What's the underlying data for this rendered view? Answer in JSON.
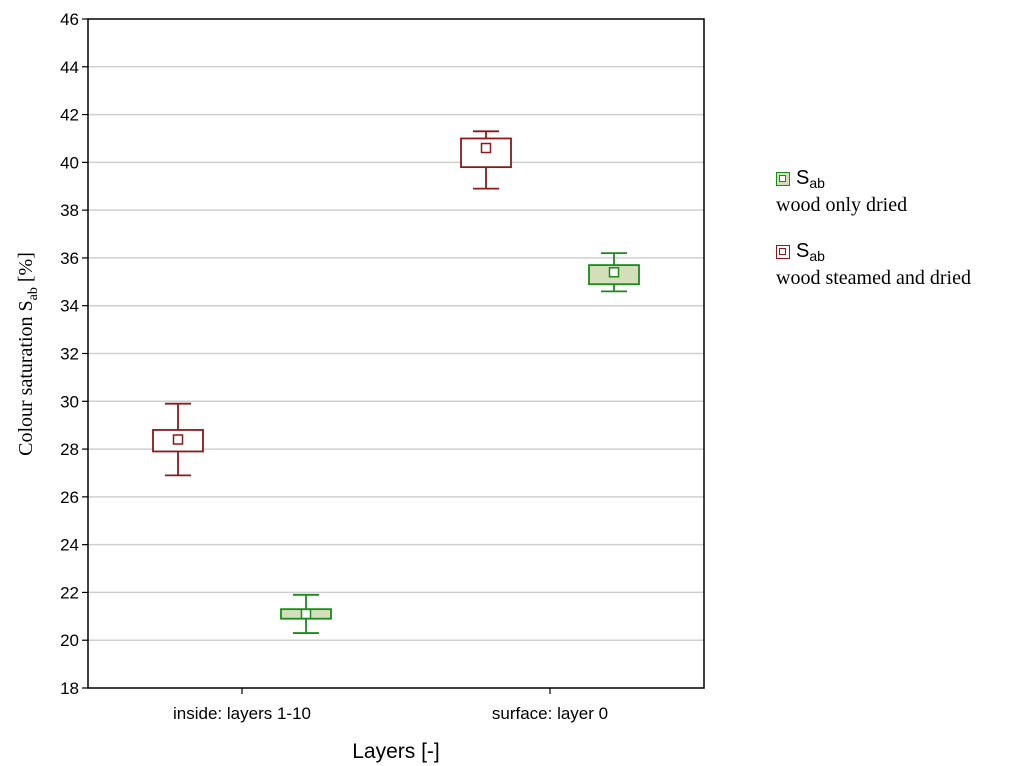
{
  "chart_data": {
    "type": "box",
    "xlabel": "Layers [-]",
    "ylabel": {
      "prefix": "Colour saturation S",
      "sub": "ab",
      "suffix": " [%]"
    },
    "ylim": [
      18,
      46
    ],
    "yticks": [
      18,
      20,
      22,
      24,
      26,
      28,
      30,
      32,
      34,
      36,
      38,
      40,
      42,
      44,
      46
    ],
    "grid": true,
    "categories": [
      "inside: layers 1-10",
      "surface: layer 0"
    ],
    "series": [
      {
        "name": "wood only dried",
        "symbol": "S",
        "symbol_sub": "ab",
        "color": "#1a8a1a",
        "fill": "#d3dfb8",
        "points": [
          {
            "mean": 21.1,
            "box_low": 20.9,
            "box_high": 21.3,
            "whisker_low": 20.3,
            "whisker_high": 21.9
          },
          {
            "mean": 35.4,
            "box_low": 34.9,
            "box_high": 35.7,
            "whisker_low": 34.6,
            "whisker_high": 36.2
          }
        ]
      },
      {
        "name": "wood steamed and dried",
        "symbol": "S",
        "symbol_sub": "ab",
        "color": "#8b1a1a",
        "fill": "#ffffff",
        "points": [
          {
            "mean": 28.4,
            "box_low": 27.9,
            "box_high": 28.8,
            "whisker_low": 26.9,
            "whisker_high": 29.9
          },
          {
            "mean": 40.6,
            "box_low": 39.8,
            "box_high": 41.0,
            "whisker_low": 38.9,
            "whisker_high": 41.3
          }
        ]
      }
    ]
  }
}
